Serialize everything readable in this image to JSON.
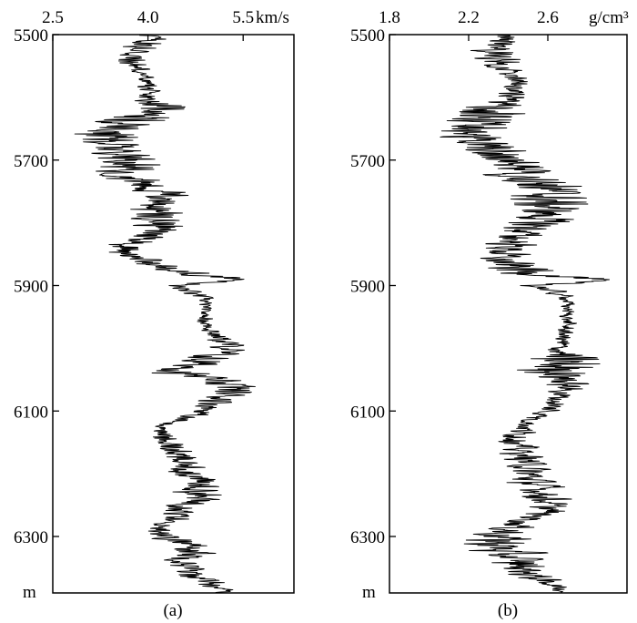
{
  "chart_data": [
    {
      "type": "line",
      "panel_label": "(a)",
      "unit": "km/s",
      "x_ticks": [
        "2.5",
        "4.0",
        "5.5"
      ],
      "xlim": [
        2.5,
        6.3
      ],
      "y_unit": "m",
      "y_ticks": [
        "5500",
        "5700",
        "5900",
        "6100",
        "6300"
      ],
      "ylim": [
        5500,
        6390
      ],
      "grid": false,
      "series": [
        {
          "name": "",
          "color": "#000000",
          "depth": [
            5500,
            5520,
            5540,
            5560,
            5580,
            5600,
            5620,
            5640,
            5660,
            5680,
            5700,
            5720,
            5740,
            5760,
            5780,
            5800,
            5820,
            5840,
            5860,
            5880,
            5890,
            5900,
            5920,
            5940,
            5960,
            5980,
            6000,
            6020,
            6040,
            6060,
            6080,
            6100,
            6120,
            6140,
            6160,
            6180,
            6200,
            6220,
            6240,
            6260,
            6280,
            6300,
            6320,
            6340,
            6360,
            6380,
            6390
          ],
          "values": [
            4.1,
            3.9,
            3.7,
            3.9,
            4.0,
            3.95,
            4.3,
            3.6,
            3.3,
            3.5,
            3.8,
            3.6,
            4.0,
            4.3,
            4.1,
            4.2,
            4.1,
            3.6,
            3.9,
            4.5,
            5.6,
            4.4,
            4.9,
            4.9,
            4.9,
            5.1,
            5.3,
            4.8,
            4.5,
            5.4,
            5.2,
            4.9,
            4.3,
            4.2,
            4.4,
            4.5,
            4.7,
            4.8,
            4.8,
            4.6,
            4.2,
            4.3,
            4.8,
            4.6,
            4.7,
            5.1,
            5.2
          ],
          "spread": [
            0.3,
            0.4,
            0.35,
            0.2,
            0.2,
            0.25,
            0.5,
            0.6,
            0.6,
            0.55,
            0.6,
            0.6,
            0.5,
            0.5,
            0.5,
            0.45,
            0.45,
            0.35,
            0.4,
            0.5,
            0.3,
            0.3,
            0.15,
            0.1,
            0.15,
            0.25,
            0.35,
            0.5,
            0.55,
            0.4,
            0.4,
            0.3,
            0.2,
            0.25,
            0.3,
            0.35,
            0.4,
            0.45,
            0.45,
            0.4,
            0.25,
            0.35,
            0.45,
            0.4,
            0.3,
            0.25,
            0.2
          ]
        }
      ]
    },
    {
      "type": "line",
      "panel_label": "(b)",
      "unit": "g/cm³",
      "x_ticks": [
        "1.8",
        "2.2",
        "2.6"
      ],
      "xlim": [
        1.8,
        3.0
      ],
      "y_unit": "m",
      "y_ticks": [
        "5500",
        "5700",
        "5900",
        "6100",
        "6300"
      ],
      "ylim": [
        5500,
        6390
      ],
      "grid": false,
      "series": [
        {
          "name": "",
          "color": "#000000",
          "depth": [
            5500,
            5520,
            5540,
            5560,
            5580,
            5600,
            5620,
            5640,
            5660,
            5680,
            5700,
            5720,
            5740,
            5760,
            5780,
            5800,
            5820,
            5840,
            5860,
            5880,
            5890,
            5900,
            5920,
            5940,
            5960,
            5980,
            6000,
            6020,
            6040,
            6060,
            6080,
            6100,
            6120,
            6140,
            6160,
            6180,
            6200,
            6220,
            6240,
            6260,
            6280,
            6300,
            6320,
            6340,
            6360,
            6380,
            6390
          ],
          "values": [
            2.4,
            2.3,
            2.35,
            2.4,
            2.45,
            2.4,
            2.3,
            2.25,
            2.2,
            2.3,
            2.4,
            2.45,
            2.6,
            2.6,
            2.6,
            2.55,
            2.45,
            2.4,
            2.35,
            2.5,
            2.85,
            2.55,
            2.7,
            2.7,
            2.7,
            2.68,
            2.66,
            2.65,
            2.68,
            2.7,
            2.65,
            2.6,
            2.5,
            2.45,
            2.45,
            2.5,
            2.5,
            2.55,
            2.6,
            2.6,
            2.45,
            2.35,
            2.35,
            2.45,
            2.5,
            2.65,
            2.68
          ],
          "spread": [
            0.1,
            0.15,
            0.12,
            0.08,
            0.08,
            0.1,
            0.2,
            0.25,
            0.2,
            0.2,
            0.15,
            0.2,
            0.25,
            0.25,
            0.2,
            0.2,
            0.15,
            0.15,
            0.15,
            0.2,
            0.15,
            0.12,
            0.05,
            0.04,
            0.05,
            0.05,
            0.07,
            0.3,
            0.25,
            0.1,
            0.08,
            0.1,
            0.08,
            0.1,
            0.12,
            0.12,
            0.15,
            0.15,
            0.15,
            0.1,
            0.12,
            0.2,
            0.25,
            0.2,
            0.15,
            0.05,
            0.04
          ]
        }
      ]
    }
  ]
}
